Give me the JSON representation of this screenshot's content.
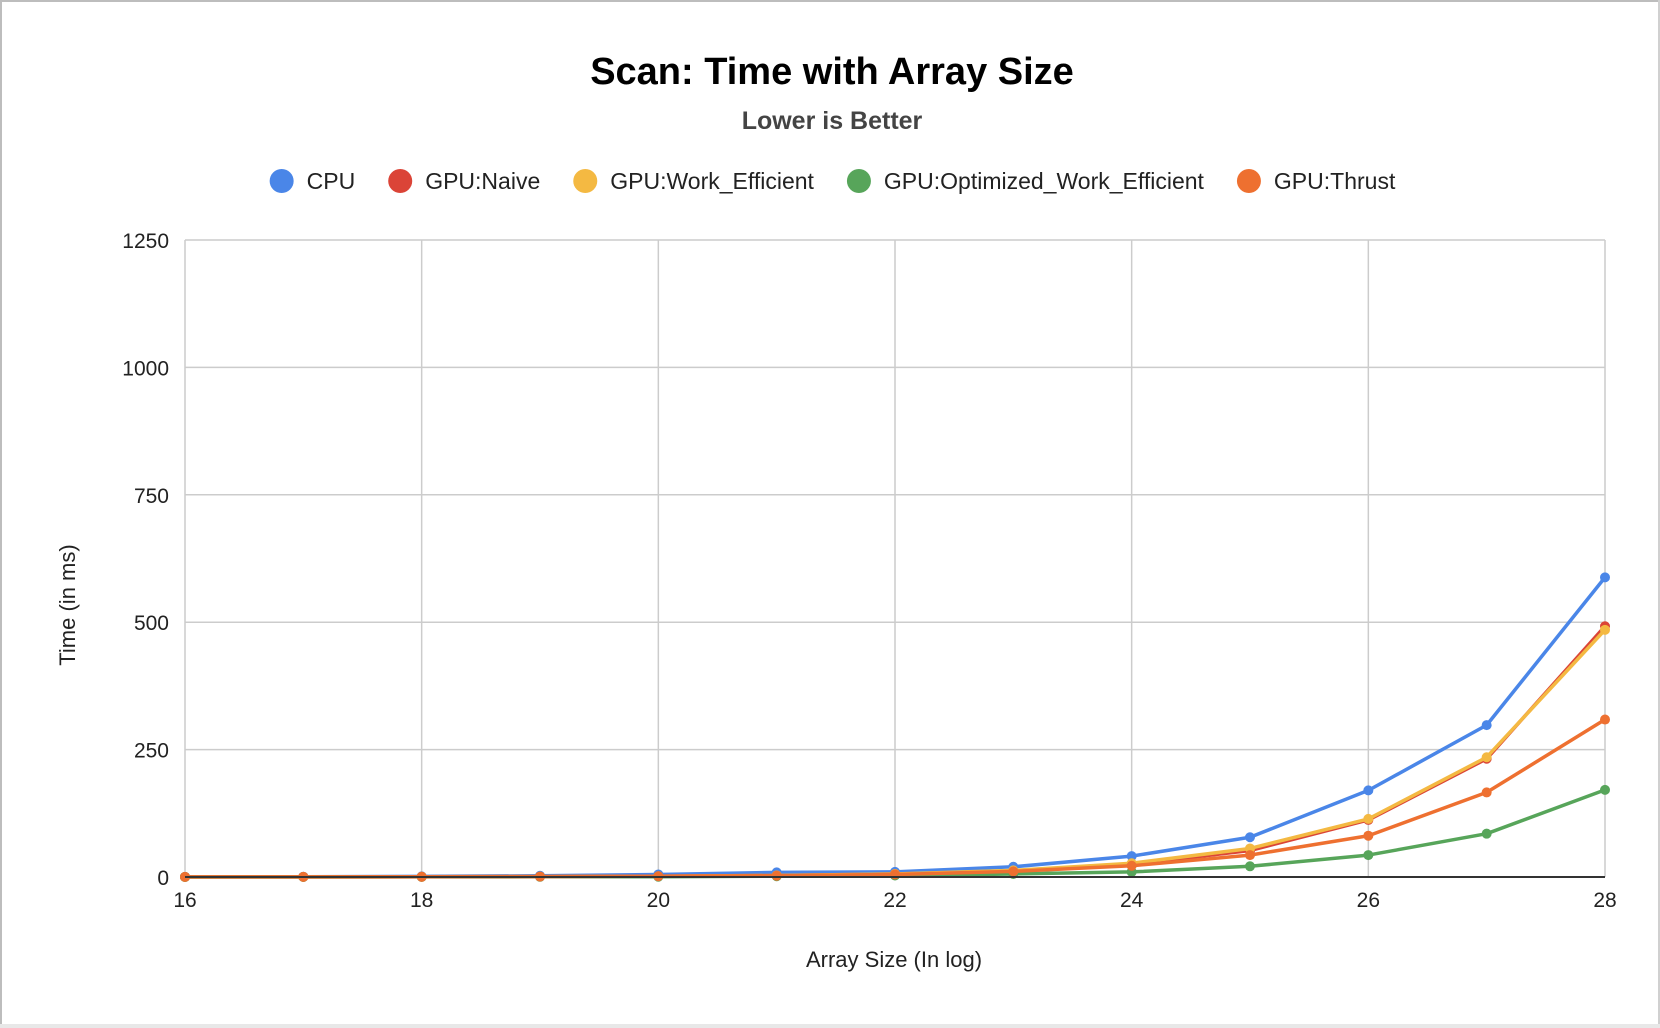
{
  "chart_data": {
    "type": "line",
    "title": "Scan: Time with Array Size",
    "subtitle": "Lower is Better",
    "xlabel": "Array Size (In log)",
    "ylabel": "Time (in ms)",
    "xlim": [
      16,
      28
    ],
    "ylim": [
      0,
      1250
    ],
    "xticks": [
      "16",
      "18",
      "20",
      "22",
      "24",
      "26",
      "28"
    ],
    "yticks": [
      "0",
      "250",
      "500",
      "750",
      "1000",
      "1250"
    ],
    "grid": true,
    "legend_position": "top",
    "x": [
      16,
      17,
      18,
      19,
      20,
      21,
      22,
      23,
      24,
      25,
      26,
      27,
      28
    ],
    "series": [
      {
        "name": "CPU",
        "color": "#4a86e8",
        "values": [
          0.3,
          0.6,
          1.2,
          2.4,
          5,
          9,
          10,
          20,
          41,
          78,
          170,
          298,
          588
        ]
      },
      {
        "name": "GPU:Naive",
        "color": "#db4437",
        "values": [
          0.1,
          0.2,
          0.4,
          0.8,
          1.5,
          3,
          6,
          12,
          25,
          52,
          112,
          232,
          492
        ]
      },
      {
        "name": "GPU:Work_Efficient",
        "color": "#f4b942",
        "values": [
          0.1,
          0.2,
          0.4,
          0.8,
          1.5,
          3,
          6,
          13,
          27,
          56,
          114,
          235,
          485
        ]
      },
      {
        "name": "GPU:Optimized_Work_Efficient",
        "color": "#57a55a",
        "values": [
          0.1,
          0.1,
          0.2,
          0.4,
          0.6,
          1.5,
          3,
          6,
          10,
          21,
          43,
          85,
          171
        ]
      },
      {
        "name": "GPU:Thrust",
        "color": "#ee7030",
        "values": [
          0.2,
          0.3,
          0.5,
          0.8,
          1.5,
          2.5,
          5,
          11,
          22,
          43,
          81,
          166,
          309
        ]
      }
    ]
  }
}
